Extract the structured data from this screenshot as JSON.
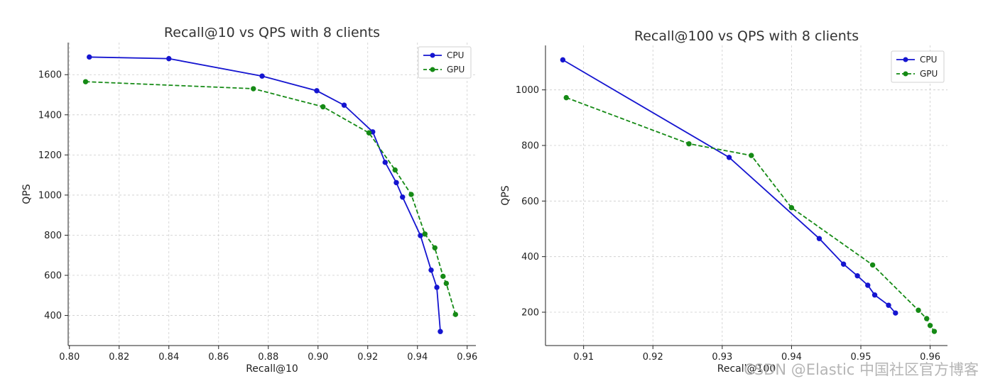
{
  "chart_data": [
    {
      "type": "line",
      "title": "Recall@10 vs QPS with 8 clients",
      "xlabel": "Recall@10",
      "ylabel": "QPS",
      "xlim": [
        0.7995,
        0.9635
      ],
      "ylim": [
        250,
        1760
      ],
      "xticks": [
        0.8,
        0.82,
        0.84,
        0.86,
        0.88,
        0.9,
        0.92,
        0.94,
        0.96
      ],
      "xtick_labels": [
        "0.80",
        "0.82",
        "0.84",
        "0.86",
        "0.88",
        "0.90",
        "0.92",
        "0.94",
        "0.96"
      ],
      "yticks": [
        400,
        600,
        800,
        1000,
        1200,
        1400,
        1600
      ],
      "ytick_labels": [
        "400",
        "600",
        "800",
        "1000",
        "1200",
        "1400",
        "1600"
      ],
      "grid": true,
      "legend": "top-right",
      "series": [
        {
          "name": "CPU",
          "color": "#1515d0",
          "style": "solid",
          "x": [
            0.808,
            0.84,
            0.8775,
            0.8995,
            0.9105,
            0.922,
            0.927,
            0.9315,
            0.934,
            0.9412,
            0.9455,
            0.9478,
            0.9492
          ],
          "y": [
            1688,
            1680,
            1593,
            1520,
            1448,
            1315,
            1163,
            1062,
            990,
            798,
            626,
            540,
            320
          ]
        },
        {
          "name": "GPU",
          "color": "#158a15",
          "style": "dashed",
          "x": [
            0.8065,
            0.874,
            0.902,
            0.9205,
            0.931,
            0.9375,
            0.943,
            0.947,
            0.9503,
            0.9516,
            0.9553
          ],
          "y": [
            1565,
            1530,
            1440,
            1310,
            1125,
            1003,
            806,
            737,
            595,
            560,
            405
          ]
        }
      ]
    },
    {
      "type": "line",
      "title": "Recall@100 vs QPS with 8 clients",
      "xlabel": "Recall@100",
      "ylabel": "QPS",
      "xlim": [
        0.9045,
        0.9625
      ],
      "ylim": [
        80,
        1160
      ],
      "xticks": [
        0.91,
        0.92,
        0.93,
        0.94,
        0.95,
        0.96
      ],
      "xtick_labels": [
        "0.91",
        "0.92",
        "0.93",
        "0.94",
        "0.95",
        "0.96"
      ],
      "yticks": [
        200,
        400,
        600,
        800,
        1000
      ],
      "ytick_labels": [
        "200",
        "400",
        "600",
        "800",
        "1000"
      ],
      "grid": true,
      "legend": "top-right",
      "series": [
        {
          "name": "CPU",
          "color": "#1515d0",
          "style": "solid",
          "x": [
            0.907,
            0.931,
            0.944,
            0.9475,
            0.9495,
            0.951,
            0.952,
            0.954,
            0.955
          ],
          "y": [
            1108,
            757,
            465,
            373,
            331,
            297,
            262,
            225,
            197
          ]
        },
        {
          "name": "GPU",
          "color": "#158a15",
          "style": "dashed",
          "x": [
            0.9075,
            0.9252,
            0.9342,
            0.94,
            0.9517,
            0.9583,
            0.9595,
            0.96,
            0.9606
          ],
          "y": [
            972,
            806,
            764,
            576,
            370,
            207,
            177,
            152,
            131
          ]
        }
      ]
    }
  ],
  "watermark": "CSDN @Elastic 中国社区官方博客"
}
